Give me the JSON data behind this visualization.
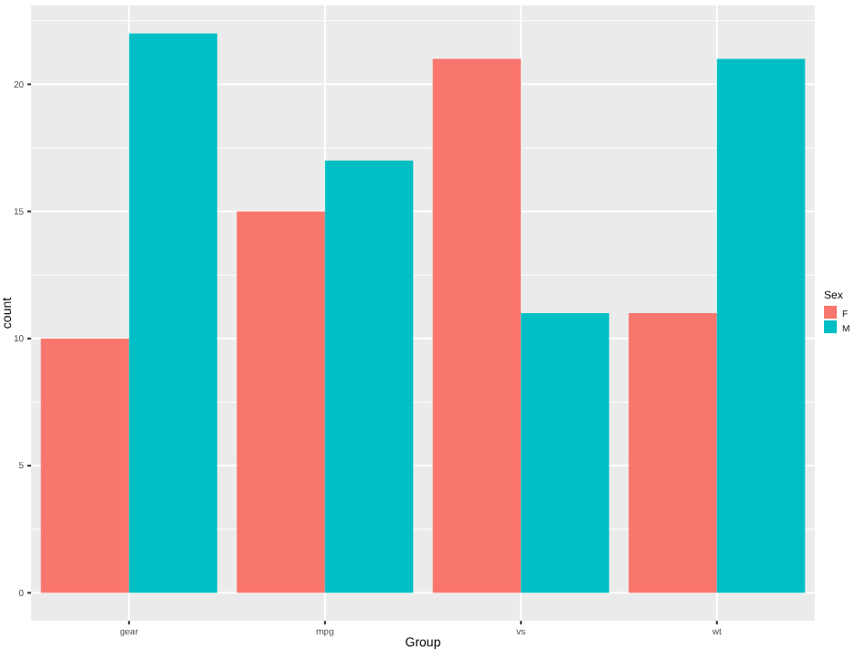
{
  "chart_data": {
    "type": "bar",
    "xlabel": "Group",
    "ylabel": "count",
    "legend_title": "Sex",
    "categories": [
      "gear",
      "mpg",
      "vs",
      "wt"
    ],
    "series": [
      {
        "name": "F",
        "color": "#f8766d",
        "values": [
          10,
          15,
          21,
          11
        ]
      },
      {
        "name": "M",
        "color": "#00bfc4",
        "values": [
          22,
          17,
          11,
          21
        ]
      }
    ],
    "ylim": [
      -1.1,
      23.1
    ],
    "yticks": [
      0,
      5,
      10,
      15,
      20
    ],
    "grid": true,
    "legend": "right"
  }
}
